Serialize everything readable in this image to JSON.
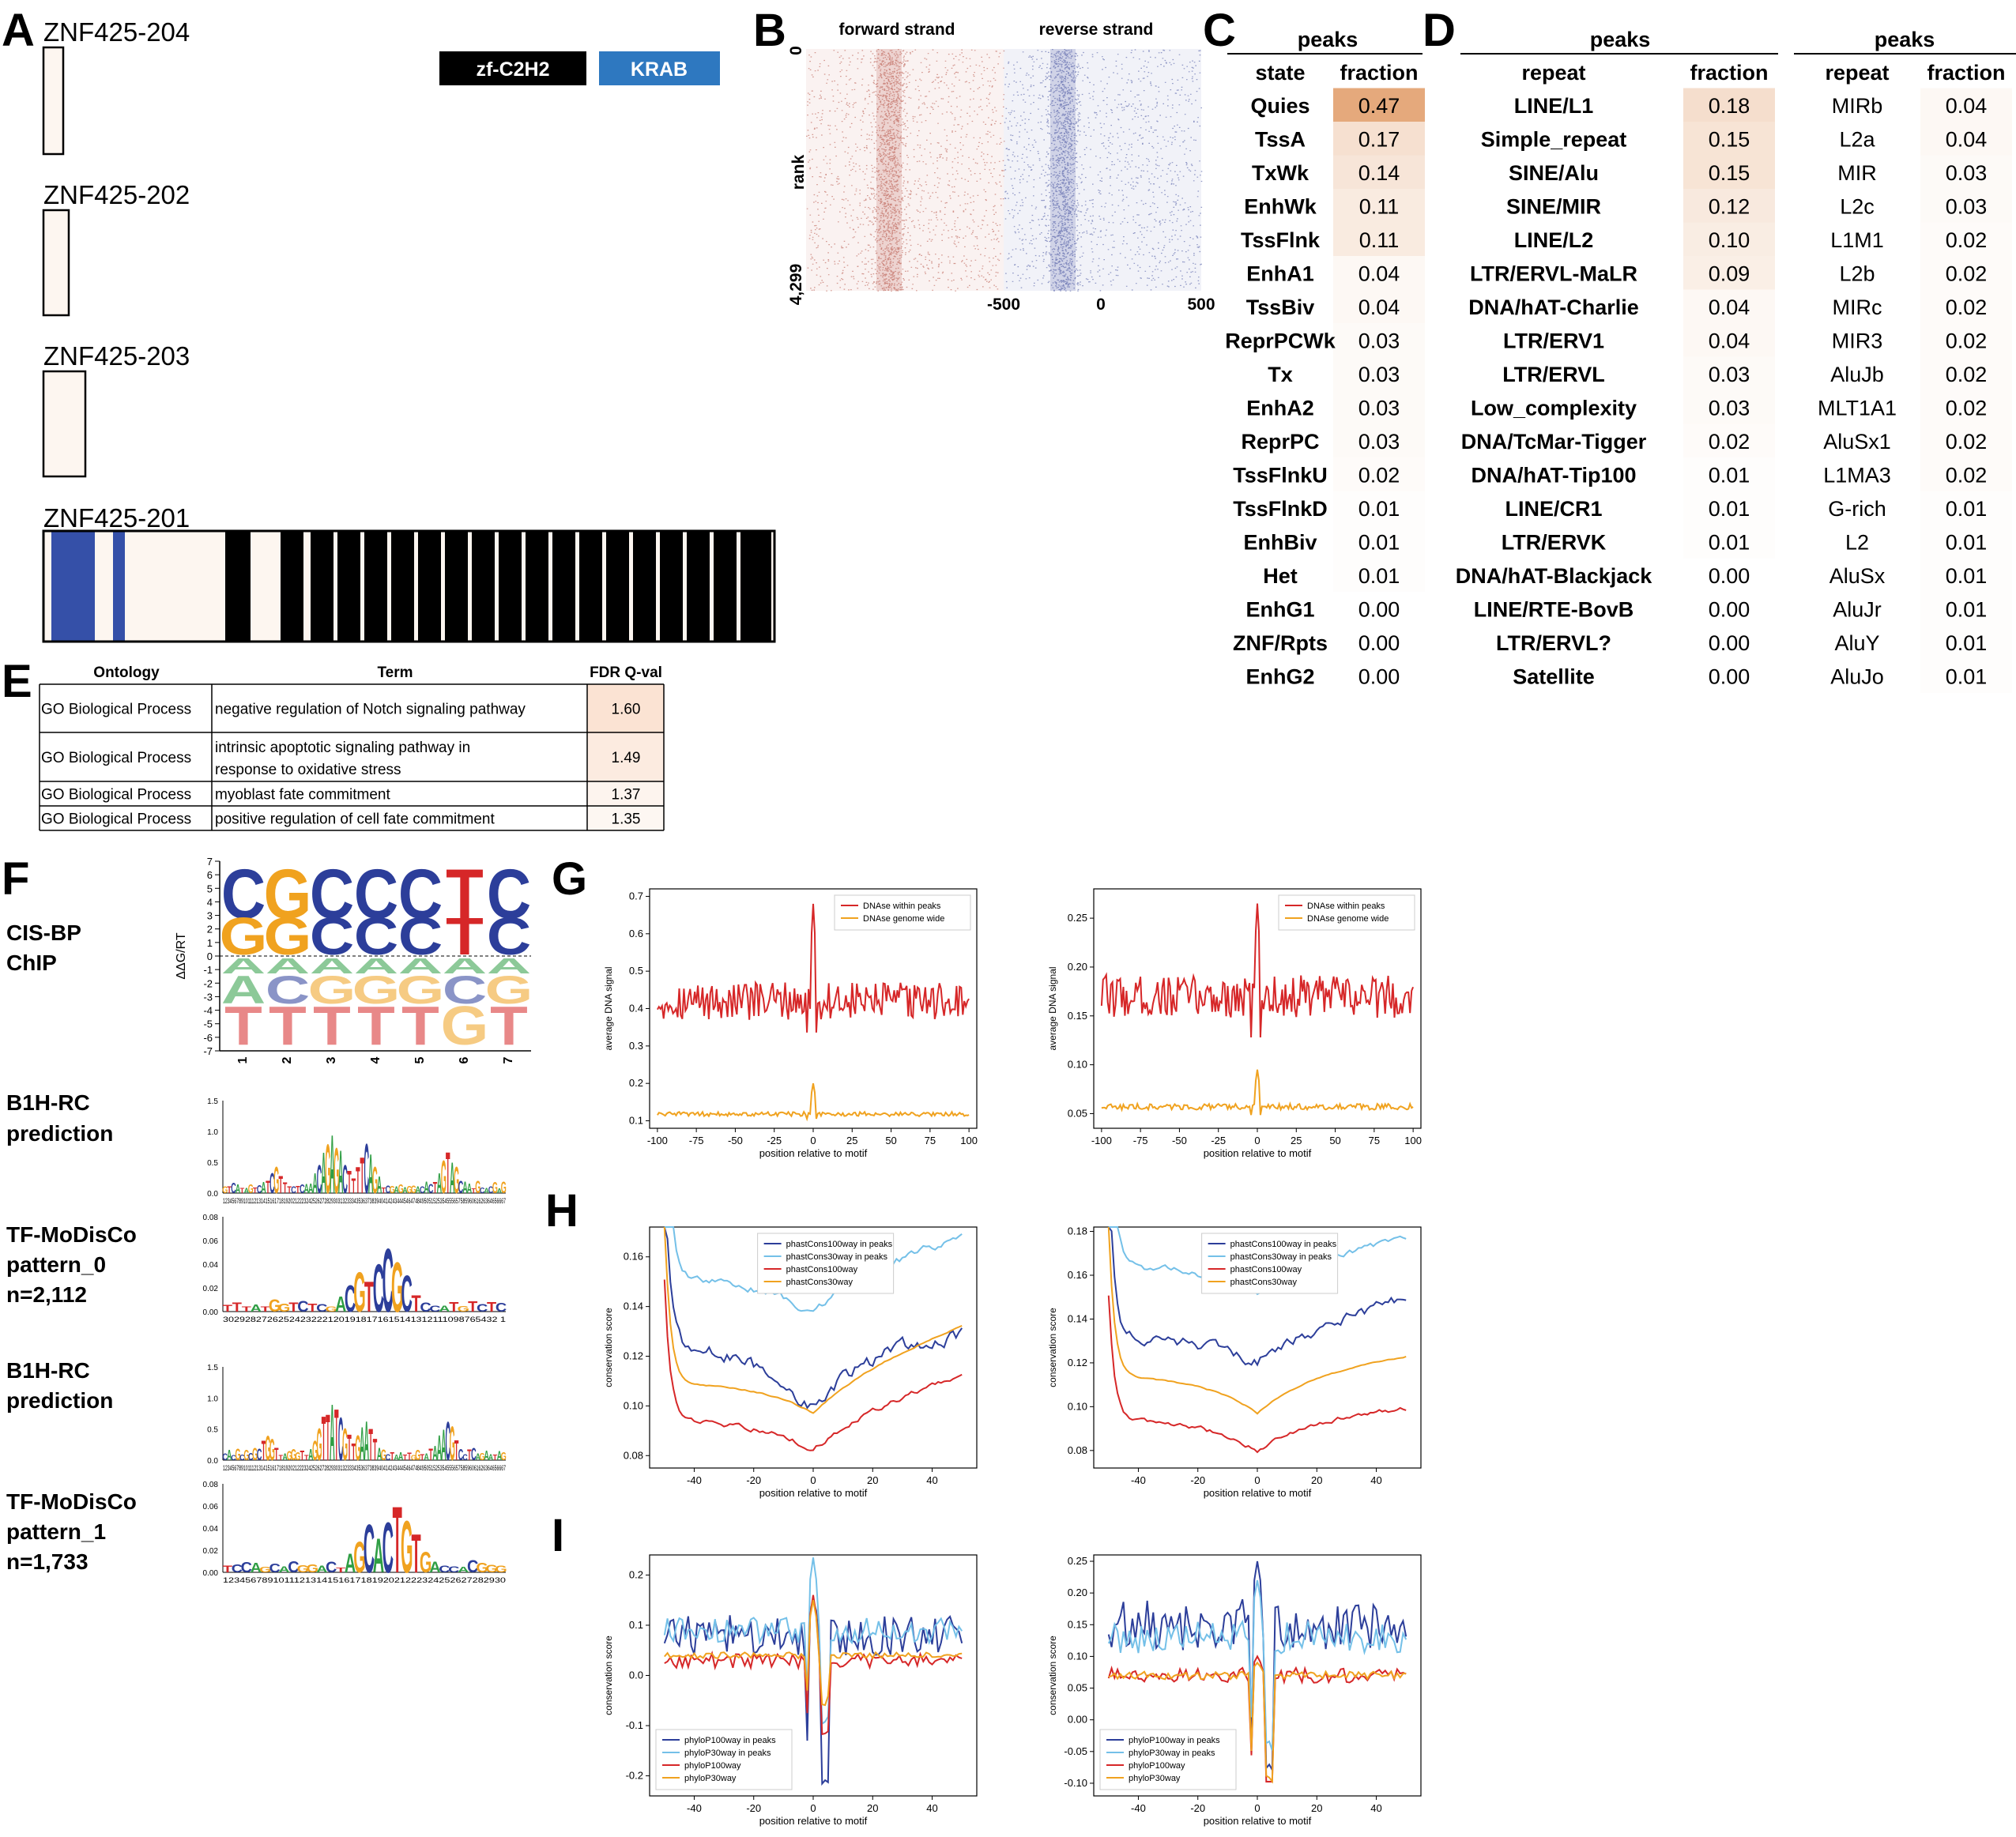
{
  "panel_letters": {
    "A": "A",
    "B": "B",
    "C": "C",
    "D": "D",
    "E": "E",
    "F": "F",
    "G": "G",
    "H": "H",
    "I": "I"
  },
  "panelA": {
    "legend": [
      {
        "label": "zf-C2H2",
        "color": "#000000"
      },
      {
        "label": "KRAB",
        "color": "#2e78c0"
      }
    ],
    "isoforms": [
      "ZNF425-204",
      "ZNF425-202",
      "ZNF425-203",
      "ZNF425-201"
    ],
    "domain_color": "#3550a8",
    "zinc_finger_color": "#000000",
    "box_fill": "#fdf6f0"
  },
  "panelB": {
    "col_titles": [
      "forward strand",
      "reverse strand"
    ],
    "ylabel": "rank",
    "yticks": [
      "0",
      "4,299"
    ],
    "xticks": [
      "-500",
      "0",
      "500"
    ],
    "forward_color": "#b24a3c",
    "reverse_color": "#3d4a9a"
  },
  "panelC": {
    "group_title": "peaks",
    "headers": [
      "state",
      "fraction"
    ],
    "rows": [
      [
        "Quies",
        "0.47"
      ],
      [
        "TssA",
        "0.17"
      ],
      [
        "TxWk",
        "0.14"
      ],
      [
        "EnhWk",
        "0.11"
      ],
      [
        "TssFlnk",
        "0.11"
      ],
      [
        "EnhA1",
        "0.04"
      ],
      [
        "TssBiv",
        "0.04"
      ],
      [
        "ReprPCWk",
        "0.03"
      ],
      [
        "Tx",
        "0.03"
      ],
      [
        "EnhA2",
        "0.03"
      ],
      [
        "ReprPC",
        "0.03"
      ],
      [
        "TssFlnkU",
        "0.02"
      ],
      [
        "TssFlnkD",
        "0.01"
      ],
      [
        "EnhBiv",
        "0.01"
      ],
      [
        "Het",
        "0.01"
      ],
      [
        "EnhG1",
        "0.00"
      ],
      [
        "ZNF/Rpts",
        "0.00"
      ],
      [
        "EnhG2",
        "0.00"
      ]
    ]
  },
  "panelD": {
    "left": {
      "group_title": "peaks",
      "headers": [
        "repeat",
        "fraction"
      ],
      "rows": [
        [
          "LINE/L1",
          "0.18"
        ],
        [
          "Simple_repeat",
          "0.15"
        ],
        [
          "SINE/Alu",
          "0.15"
        ],
        [
          "SINE/MIR",
          "0.12"
        ],
        [
          "LINE/L2",
          "0.10"
        ],
        [
          "LTR/ERVL-MaLR",
          "0.09"
        ],
        [
          "DNA/hAT-Charlie",
          "0.04"
        ],
        [
          "LTR/ERV1",
          "0.04"
        ],
        [
          "LTR/ERVL",
          "0.03"
        ],
        [
          "Low_complexity",
          "0.03"
        ],
        [
          "DNA/TcMar-Tigger",
          "0.02"
        ],
        [
          "DNA/hAT-Tip100",
          "0.01"
        ],
        [
          "LINE/CR1",
          "0.01"
        ],
        [
          "LTR/ERVK",
          "0.01"
        ],
        [
          "DNA/hAT-Blackjack",
          "0.00"
        ],
        [
          "LINE/RTE-BovB",
          "0.00"
        ],
        [
          "LTR/ERVL?",
          "0.00"
        ],
        [
          "Satellite",
          "0.00"
        ]
      ]
    },
    "right": {
      "group_title": "peaks",
      "headers": [
        "repeat",
        "fraction"
      ],
      "rows": [
        [
          "MIRb",
          "0.04"
        ],
        [
          "L2a",
          "0.04"
        ],
        [
          "MIR",
          "0.03"
        ],
        [
          "L2c",
          "0.03"
        ],
        [
          "L1M1",
          "0.02"
        ],
        [
          "L2b",
          "0.02"
        ],
        [
          "MIRc",
          "0.02"
        ],
        [
          "MIR3",
          "0.02"
        ],
        [
          "AluJb",
          "0.02"
        ],
        [
          "MLT1A1",
          "0.02"
        ],
        [
          "AluSx1",
          "0.02"
        ],
        [
          "L1MA3",
          "0.02"
        ],
        [
          "G-rich",
          "0.01"
        ],
        [
          "L2",
          "0.01"
        ],
        [
          "AluSx",
          "0.01"
        ],
        [
          "AluJr",
          "0.01"
        ],
        [
          "AluY",
          "0.01"
        ],
        [
          "AluJo",
          "0.01"
        ]
      ]
    }
  },
  "panelE": {
    "headers": [
      "Ontology",
      "Term",
      "FDR Q-val"
    ],
    "rows": [
      {
        "ontology": "GO Biological Process",
        "term": [
          "negative regulation of Notch signaling pathway"
        ],
        "q": "1.60"
      },
      {
        "ontology": "GO Biological Process",
        "term": [
          "intrinsic apoptotic signaling pathway in",
          "response to oxidative stress"
        ],
        "q": "1.49"
      },
      {
        "ontology": "GO Biological Process",
        "term": [
          "myoblast fate commitment"
        ],
        "q": "1.37"
      },
      {
        "ontology": "GO Biological Process",
        "term": [
          "positive regulation of cell fate commitment"
        ],
        "q": "1.35"
      }
    ]
  },
  "panelF": {
    "rows": [
      {
        "label": [
          "CIS-BP",
          "ChIP"
        ]
      },
      {
        "label": [
          "B1H-RC",
          "prediction"
        ]
      },
      {
        "label": [
          "TF-MoDisCo",
          "pattern_0",
          "n=2,112"
        ]
      },
      {
        "label": [
          "B1H-RC",
          "prediction"
        ]
      },
      {
        "label": [
          "TF-MoDisCo",
          "pattern_1",
          "n=1,733"
        ]
      }
    ],
    "cisbp_ylabel": "ΔΔG/RT",
    "cisbp_yticks": [
      "7",
      "6",
      "5",
      "4",
      "3",
      "2",
      "1",
      "0",
      "-1",
      "-2",
      "-3",
      "-4",
      "-5",
      "-6",
      "-7"
    ],
    "cisbp_xticks": [
      "1",
      "2",
      "3",
      "4",
      "5",
      "6",
      "7"
    ],
    "cisbp_top": [
      "C",
      "G",
      "C",
      "C",
      "C",
      "T",
      "C"
    ],
    "cisbp_top2": [
      "G",
      "",
      "",
      "",
      "",
      "",
      ""
    ],
    "cisbp_mid": [
      "A",
      "A",
      "A",
      "A",
      "A",
      "A",
      "A"
    ],
    "cisbp_low": [
      "A",
      "C",
      "G",
      "G",
      "G",
      "C",
      "G"
    ],
    "cisbp_bottom": [
      "T",
      "T",
      "T",
      "T",
      "T",
      "G",
      "T"
    ],
    "b1h_yticks": [
      "1.5",
      "1.0",
      "0.5",
      "0.0"
    ],
    "b1h_seq": "12345678910111213141516171819202122232425262728293031323334353637383940414243444546474849505152535455565758596061626364656667",
    "modisco0_yticks": [
      "0.08",
      "0.06",
      "0.04",
      "0.02",
      "0.00"
    ],
    "modisco0_seq": "30292827262524232221201918171615141312111098765432 1",
    "modisco1_yticks": [
      "0.08",
      "0.06",
      "0.04",
      "0.02",
      "0.00"
    ],
    "modisco1_seq": "123456789101112131415161718192021222324252627282930",
    "letter_colors": {
      "A": "#2f9e44",
      "C": "#2c3e9a",
      "G": "#f0a21f",
      "T": "#d62728"
    }
  },
  "chart_data": [
    {
      "panel": "G-left",
      "type": "line",
      "xlabel": "position relative to motif",
      "ylabel": "average DNA signal",
      "xlim": [
        -105,
        105
      ],
      "ylim": [
        0.08,
        0.72
      ],
      "xticks": [
        "-100",
        "-75",
        "-50",
        "-25",
        "0",
        "25",
        "50",
        "75",
        "100"
      ],
      "yticks": [
        "0.1",
        "0.2",
        "0.3",
        "0.4",
        "0.5",
        "0.6",
        "0.7"
      ],
      "series": [
        {
          "name": "DNAse within peaks",
          "color": "#d62728",
          "base": 0.42,
          "noise": 0.05,
          "peak": 0.68,
          "dip": 0.3
        },
        {
          "name": "DNAse genome wide",
          "color": "#f0a21f",
          "base": 0.118,
          "noise": 0.006,
          "peak": 0.2,
          "dip": 0.1
        }
      ]
    },
    {
      "panel": "G-right",
      "type": "line",
      "xlabel": "position relative to motif",
      "ylabel": "average DNA signal",
      "xlim": [
        -105,
        105
      ],
      "ylim": [
        0.035,
        0.28
      ],
      "xticks": [
        "-100",
        "-75",
        "-50",
        "-25",
        "0",
        "25",
        "50",
        "75",
        "100"
      ],
      "yticks": [
        "0.05",
        "0.10",
        "0.15",
        "0.20",
        "0.25"
      ],
      "series": [
        {
          "name": "DNAse within peaks",
          "color": "#d62728",
          "base": 0.17,
          "noise": 0.022,
          "peak": 0.265,
          "dip": 0.11
        },
        {
          "name": "DNAse genome wide",
          "color": "#f0a21f",
          "base": 0.057,
          "noise": 0.003,
          "peak": 0.095,
          "dip": 0.045
        }
      ]
    },
    {
      "panel": "H-left",
      "type": "line",
      "xlabel": "position relative to motif",
      "ylabel": "conservation score",
      "xlim": [
        -55,
        55
      ],
      "ylim": [
        0.075,
        0.172
      ],
      "xticks": [
        "-40",
        "-20",
        "0",
        "20",
        "40"
      ],
      "yticks": [
        "0.08",
        "0.10",
        "0.12",
        "0.14",
        "0.16"
      ],
      "series": [
        {
          "name": "phastCons100way in peaks",
          "color": "#2c3e9a",
          "base": 0.125,
          "noise": 0.006,
          "peak": 0.13,
          "dip": 0.098
        },
        {
          "name": "phastCons30way in peaks",
          "color": "#74c0e8",
          "base": 0.152,
          "noise": 0.003,
          "peak": 0.169,
          "dip": 0.137
        },
        {
          "name": "phastCons100way",
          "color": "#d62728",
          "base": 0.095,
          "noise": 0.002,
          "peak": 0.113,
          "dip": 0.082
        },
        {
          "name": "phastCons30way",
          "color": "#f0a21f",
          "base": 0.11,
          "noise": 0.0005,
          "peak": 0.133,
          "dip": 0.097
        }
      ]
    },
    {
      "panel": "H-right",
      "type": "line",
      "xlabel": "position relative to motif",
      "ylabel": "conservation score",
      "xlim": [
        -55,
        55
      ],
      "ylim": [
        0.072,
        0.182
      ],
      "xticks": [
        "-40",
        "-20",
        "0",
        "20",
        "40"
      ],
      "yticks": [
        "0.08",
        "0.10",
        "0.12",
        "0.14",
        "0.16",
        "0.18"
      ],
      "series": [
        {
          "name": "phastCons100way in peaks",
          "color": "#2c3e9a",
          "base": 0.132,
          "noise": 0.005,
          "peak": 0.15,
          "dip": 0.12
        },
        {
          "name": "phastCons30way in peaks",
          "color": "#74c0e8",
          "base": 0.165,
          "noise": 0.003,
          "peak": 0.178,
          "dip": 0.152
        },
        {
          "name": "phastCons100way",
          "color": "#d62728",
          "base": 0.095,
          "noise": 0.002,
          "peak": 0.1,
          "dip": 0.08
        },
        {
          "name": "phastCons30way",
          "color": "#f0a21f",
          "base": 0.115,
          "noise": 0.0005,
          "peak": 0.124,
          "dip": 0.097
        }
      ]
    },
    {
      "panel": "I-left",
      "type": "line",
      "xlabel": "position relative to motif",
      "ylabel": "conservation score",
      "xlim": [
        -55,
        55
      ],
      "ylim": [
        -0.24,
        0.24
      ],
      "xticks": [
        "-40",
        "-20",
        "0",
        "20",
        "40"
      ],
      "yticks": [
        "-0.2",
        "-0.1",
        "0.0",
        "0.1",
        "0.2"
      ],
      "series": [
        {
          "name": "phyloP100way in peaks",
          "color": "#2c3e9a",
          "base": 0.08,
          "noise": 0.04,
          "peak": 0.15,
          "dip": -0.22
        },
        {
          "name": "phyloP30way in peaks",
          "color": "#74c0e8",
          "base": 0.09,
          "noise": 0.025,
          "peak": 0.235,
          "dip": -0.1
        },
        {
          "name": "phyloP100way",
          "color": "#d62728",
          "base": 0.03,
          "noise": 0.015,
          "peak": 0.16,
          "dip": -0.12
        },
        {
          "name": "phyloP30way",
          "color": "#f0a21f",
          "base": 0.04,
          "noise": 0.006,
          "peak": 0.15,
          "dip": -0.06
        }
      ]
    },
    {
      "panel": "I-right",
      "type": "line",
      "xlabel": "position relative to motif",
      "ylabel": "conservation score",
      "xlim": [
        -55,
        55
      ],
      "ylim": [
        -0.12,
        0.26
      ],
      "xticks": [
        "-40",
        "-20",
        "0",
        "20",
        "40"
      ],
      "yticks": [
        "-0.10",
        "-0.05",
        "0.00",
        "0.05",
        "0.10",
        "0.15",
        "0.20",
        "0.25"
      ],
      "series": [
        {
          "name": "phyloP100way in peaks",
          "color": "#2c3e9a",
          "base": 0.15,
          "noise": 0.04,
          "peak": 0.25,
          "dip": -0.09
        },
        {
          "name": "phyloP30way in peaks",
          "color": "#74c0e8",
          "base": 0.13,
          "noise": 0.025,
          "peak": 0.22,
          "dip": -0.05
        },
        {
          "name": "phyloP100way",
          "color": "#d62728",
          "base": 0.07,
          "noise": 0.012,
          "peak": 0.1,
          "dip": -0.11
        },
        {
          "name": "phyloP30way",
          "color": "#f0a21f",
          "base": 0.07,
          "noise": 0.006,
          "peak": 0.09,
          "dip": -0.1
        }
      ]
    }
  ]
}
